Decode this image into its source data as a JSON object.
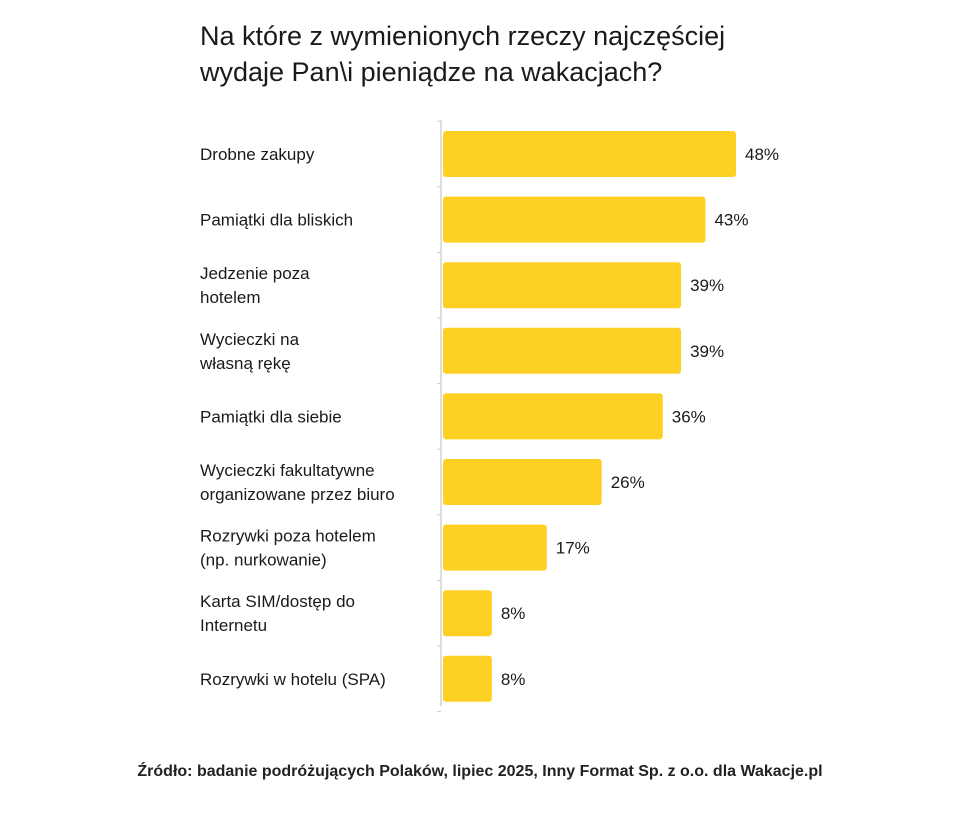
{
  "colors": {
    "bar": "#FDD023",
    "axis": "#c8c8c8",
    "text": "#1a1a1a"
  },
  "chart_data": {
    "type": "bar",
    "orientation": "horizontal",
    "title_lines": [
      "Na które z wymienionych rzeczy najczęściej",
      "wydaje Pan\\i pieniądze na wakacjach?"
    ],
    "categories": [
      [
        "Drobne zakupy"
      ],
      [
        "Pamiątki dla bliskich"
      ],
      [
        "Jedzenie poza",
        "hotelem"
      ],
      [
        "Wycieczki na",
        "własną rękę"
      ],
      [
        "Pamiątki dla siebie"
      ],
      [
        "Wycieczki fakultatywne",
        "organizowane przez biuro"
      ],
      [
        "Rozrywki poza hotelem",
        "(np. nurkowanie)"
      ],
      [
        "Karta SIM/dostęp do",
        "Internetu"
      ],
      [
        "Rozrywki w hotelu (SPA)"
      ]
    ],
    "values": [
      48,
      43,
      39,
      39,
      36,
      26,
      17,
      8,
      8
    ],
    "value_labels": [
      "48%",
      "43%",
      "39%",
      "39%",
      "36%",
      "26%",
      "17%",
      "8%",
      "8%"
    ],
    "unit": "%",
    "xlim": [
      0,
      48
    ]
  },
  "source": "Źródło: badanie podróżujących Polaków, lipiec 2025, Inny Format Sp. z o.o. dla Wakacje.pl"
}
